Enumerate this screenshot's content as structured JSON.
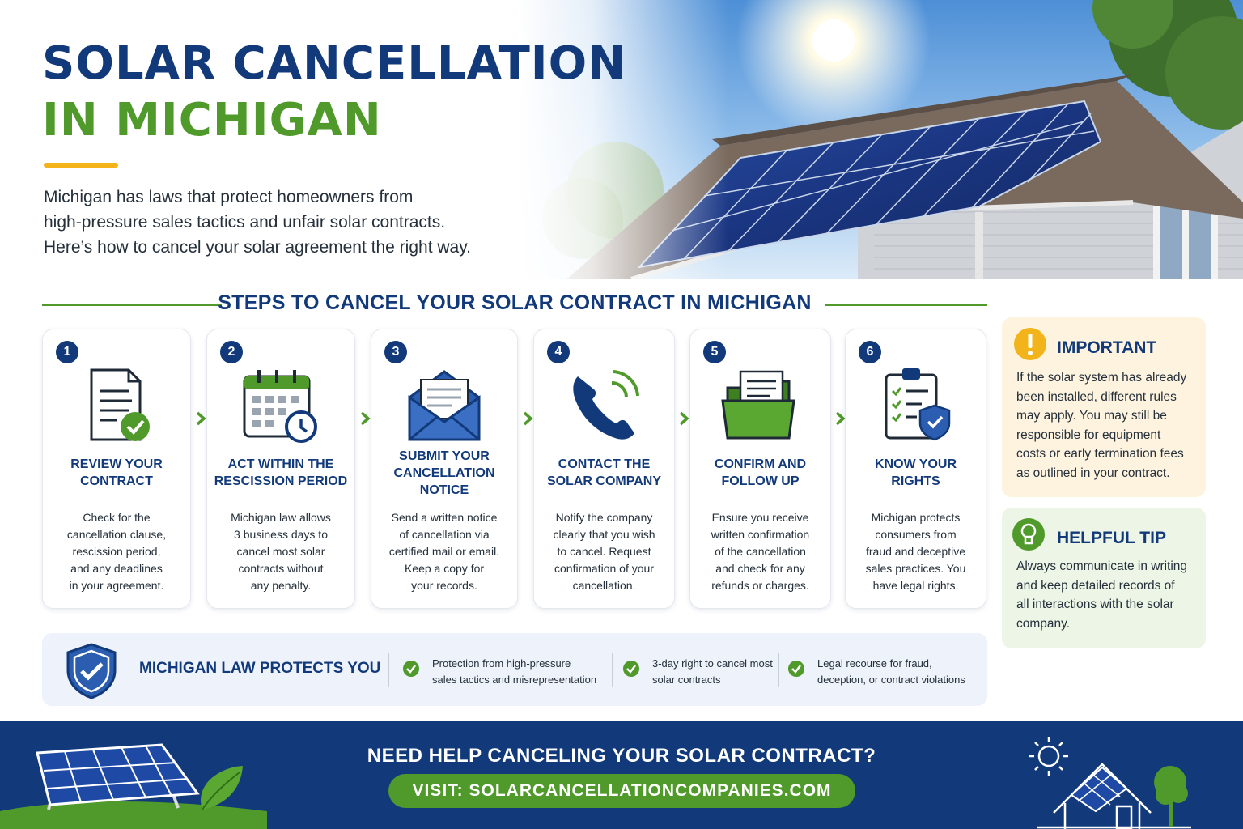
{
  "header": {
    "title_line1": "SOLAR CANCELLATION",
    "title_line2": "IN MICHIGAN",
    "intro": [
      "Michigan has laws that protect homeowners from",
      "high-pressure sales tactics and unfair solar contracts.",
      "Here’s how to cancel your solar agreement the right way."
    ]
  },
  "steps_section": {
    "title": "STEPS TO CANCEL YOUR SOLAR CONTRACT IN MICHIGAN",
    "steps": [
      {
        "number": "1",
        "icon": "contract-check-icon",
        "title_lines": [
          "REVIEW YOUR",
          "CONTRACT"
        ],
        "body": [
          "Check for the",
          "cancellation clause,",
          "rescission period,",
          "and any deadlines",
          "in your agreement."
        ]
      },
      {
        "number": "2",
        "icon": "calendar-clock-icon",
        "title_lines": [
          "ACT WITHIN THE",
          "RESCISSION PERIOD"
        ],
        "body": [
          "Michigan law allows",
          "3 business days to",
          "cancel most solar",
          "contracts without",
          "any penalty."
        ]
      },
      {
        "number": "3",
        "icon": "envelope-letter-icon",
        "title_lines": [
          "SUBMIT YOUR",
          "CANCELLATION",
          "NOTICE"
        ],
        "body": [
          "Send a written notice",
          "of cancellation via",
          "certified mail or email.",
          "Keep a copy for",
          "your records."
        ]
      },
      {
        "number": "4",
        "icon": "phone-icon",
        "title_lines": [
          "CONTACT THE",
          "SOLAR COMPANY"
        ],
        "body": [
          "Notify the company",
          "clearly that you wish",
          "to cancel. Request",
          "confirmation of your",
          "cancellation."
        ]
      },
      {
        "number": "5",
        "icon": "folder-document-icon",
        "title_lines": [
          "CONFIRM AND",
          "FOLLOW UP"
        ],
        "body": [
          "Ensure you receive",
          "written confirmation",
          "of the cancellation",
          "and check for any",
          "refunds or charges."
        ]
      },
      {
        "number": "6",
        "icon": "clipboard-shield-icon",
        "title_lines": [
          "KNOW YOUR",
          "RIGHTS"
        ],
        "body": [
          "Michigan protects",
          "consumers from",
          "fraud and deceptive",
          "sales practices. You",
          "have legal rights."
        ]
      }
    ]
  },
  "important": {
    "title": "IMPORTANT",
    "icon": "exclamation-icon",
    "body": [
      "If the solar system has already",
      "been installed, different rules",
      "may apply. You may still be",
      "responsible for equipment",
      "costs or early termination fees",
      "as outlined in your contract."
    ]
  },
  "tip": {
    "title": "HELPFUL TIP",
    "icon": "lightbulb-icon",
    "body": [
      "Always communicate in writing",
      "and keep detailed records of",
      "all interactions with the solar",
      "company."
    ]
  },
  "law": {
    "title": "MICHIGAN LAW PROTECTS YOU",
    "icon": "shield-check-icon",
    "items": [
      [
        "Protection from high-pressure",
        "sales tactics and misrepresentation"
      ],
      [
        "3-day right to cancel most",
        "solar contracts"
      ],
      [
        "Legal recourse for fraud,",
        "deception, or contract violations"
      ]
    ]
  },
  "footer": {
    "question": "NEED HELP CANCELING YOUR SOLAR CONTRACT?",
    "cta": "VISIT: SOLARCANCELLATIONCOMPANIES.COM"
  },
  "colors": {
    "navy": "#123a7a",
    "green": "#4f9a2a",
    "gold": "#f2b41a",
    "important_bg": "#fdf3df",
    "tip_bg": "#edf5e6"
  }
}
